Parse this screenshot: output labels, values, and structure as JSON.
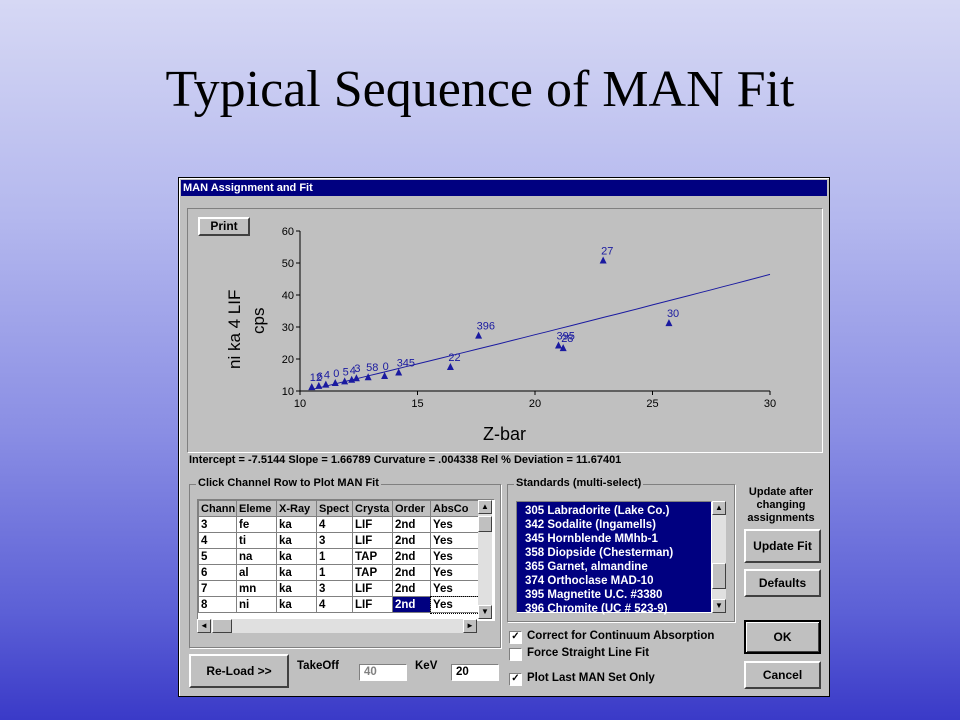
{
  "slide": {
    "title": "Typical Sequence of MAN Fit"
  },
  "window": {
    "title": "MAN Assignment and Fit"
  },
  "plot": {
    "print_label": "Print",
    "xlabel": "Z-bar",
    "ylabel_line1": "ni ka  4 LIF",
    "ylabel_line2": "cps"
  },
  "chart_data": {
    "type": "scatter",
    "xlabel": "Z-bar",
    "ylabel": "ni ka  4 LIF cps",
    "xlim": [
      10,
      30
    ],
    "ylim": [
      10,
      60
    ],
    "xticks": [
      10,
      15,
      20,
      25,
      30
    ],
    "yticks": [
      10,
      20,
      30,
      40,
      50,
      60
    ],
    "points": [
      {
        "x": 10.5,
        "y": 11.2,
        "label": "12"
      },
      {
        "x": 10.8,
        "y": 11.6,
        "label": "6"
      },
      {
        "x": 11.1,
        "y": 12.0,
        "label": "4"
      },
      {
        "x": 11.5,
        "y": 12.5,
        "label": "0"
      },
      {
        "x": 11.9,
        "y": 13.0,
        "label": "5"
      },
      {
        "x": 12.2,
        "y": 13.5,
        "label": "4"
      },
      {
        "x": 12.4,
        "y": 14.0,
        "label": "3"
      },
      {
        "x": 12.9,
        "y": 14.3,
        "label": "58"
      },
      {
        "x": 13.6,
        "y": 14.7,
        "label": "0"
      },
      {
        "x": 14.2,
        "y": 15.8,
        "label": "345"
      },
      {
        "x": 16.4,
        "y": 17.5,
        "label": "22"
      },
      {
        "x": 17.6,
        "y": 27.3,
        "label": "396"
      },
      {
        "x": 21.0,
        "y": 24.2,
        "label": "395"
      },
      {
        "x": 21.2,
        "y": 23.4,
        "label": "28"
      },
      {
        "x": 22.9,
        "y": 50.8,
        "label": "27"
      },
      {
        "x": 25.7,
        "y": 31.2,
        "label": "30"
      }
    ],
    "fit_line": {
      "intercept": -7.5144,
      "slope": 1.66789,
      "curvature": 0.004338,
      "x_start": 10.5,
      "x_end": 30
    }
  },
  "stats": {
    "text": "Intercept = -7.5144  Slope = 1.66789  Curvature = .004338   Rel % Deviation = 11.67401"
  },
  "channels": {
    "group_label": "Click Channel Row to Plot MAN Fit",
    "headers": [
      "Chann",
      "Eleme",
      "X-Ray",
      "Spect",
      "Crysta",
      "Order",
      "AbsCo"
    ],
    "rows": [
      [
        "3",
        "fe",
        "ka",
        "4",
        "LIF",
        "2nd",
        "Yes"
      ],
      [
        "4",
        "ti",
        "ka",
        "3",
        "LIF",
        "2nd",
        "Yes"
      ],
      [
        "5",
        "na",
        "ka",
        "1",
        "TAP",
        "2nd",
        "Yes"
      ],
      [
        "6",
        "al",
        "ka",
        "1",
        "TAP",
        "2nd",
        "Yes"
      ],
      [
        "7",
        "mn",
        "ka",
        "3",
        "LIF",
        "2nd",
        "Yes"
      ],
      [
        "8",
        "ni",
        "ka",
        "4",
        "LIF",
        "2nd",
        "Yes"
      ]
    ]
  },
  "standards": {
    "group_label": "Standards (multi-select)",
    "items": [
      "305 Labradorite (Lake Co.)",
      "342 Sodalite (Ingamells)",
      "345 Hornblende MMhb-1",
      "358 Diopside (Chesterman)",
      "365 Garnet, almandine",
      "374 Orthoclase MAD-10",
      "395 Magnetite U.C. #3380",
      "396 Chromite (UC # 523-9)"
    ]
  },
  "buttons": {
    "update_note": "Update after changing assignments",
    "update_fit": "Update Fit",
    "defaults": "Defaults",
    "ok": "OK",
    "cancel": "Cancel",
    "reload": "Re-Load >>"
  },
  "fields": {
    "takeoff_label": "TakeOff",
    "takeoff_value": "40",
    "kev_label": "KeV",
    "kev_value": "20"
  },
  "options": [
    {
      "label": "Correct for Continuum Absorption",
      "checked": true
    },
    {
      "label": "Force Straight Line Fit",
      "checked": false
    },
    {
      "label": "Plot Last MAN Set Only",
      "checked": true
    }
  ],
  "colors": {
    "plot": "#1a1aa0",
    "selection": "#000080"
  }
}
